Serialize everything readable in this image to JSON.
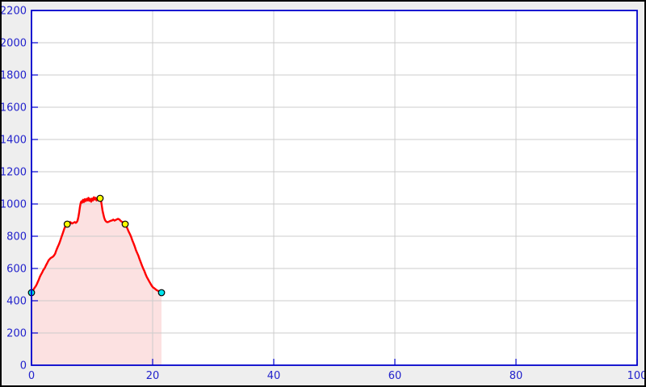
{
  "chart_data": {
    "type": "area",
    "description": "elevation-profile-track",
    "x_axis": {
      "min": 0,
      "max": 100,
      "tick_step": 20,
      "ticks": [
        0,
        20,
        40,
        60,
        80,
        100
      ]
    },
    "y_axis": {
      "min": 0,
      "max": 2200,
      "tick_step": 200,
      "ticks": [
        0,
        200,
        400,
        600,
        800,
        1000,
        1200,
        1400,
        1600,
        1800,
        2000,
        2200
      ]
    },
    "grid": true,
    "legend": false,
    "series": [
      {
        "name": "elevation",
        "points": [
          [
            0.0,
            450
          ],
          [
            0.15,
            458
          ],
          [
            0.3,
            468
          ],
          [
            0.45,
            477
          ],
          [
            0.6,
            485
          ],
          [
            0.75,
            493
          ],
          [
            0.9,
            505
          ],
          [
            1.05,
            518
          ],
          [
            1.2,
            530
          ],
          [
            1.35,
            545
          ],
          [
            1.5,
            558
          ],
          [
            1.65,
            568
          ],
          [
            1.8,
            578
          ],
          [
            1.95,
            590
          ],
          [
            2.1,
            598
          ],
          [
            2.25,
            608
          ],
          [
            2.4,
            620
          ],
          [
            2.55,
            630
          ],
          [
            2.7,
            642
          ],
          [
            2.85,
            652
          ],
          [
            3.0,
            658
          ],
          [
            3.15,
            664
          ],
          [
            3.3,
            668
          ],
          [
            3.5,
            672
          ],
          [
            3.7,
            680
          ],
          [
            3.9,
            692
          ],
          [
            4.05,
            708
          ],
          [
            4.2,
            722
          ],
          [
            4.35,
            735
          ],
          [
            4.5,
            748
          ],
          [
            4.65,
            762
          ],
          [
            4.8,
            778
          ],
          [
            4.95,
            795
          ],
          [
            5.1,
            812
          ],
          [
            5.25,
            828
          ],
          [
            5.4,
            845
          ],
          [
            5.55,
            858
          ],
          [
            5.75,
            868
          ],
          [
            5.95,
            874
          ],
          [
            6.1,
            880
          ],
          [
            6.25,
            885
          ],
          [
            6.4,
            888
          ],
          [
            6.55,
            883
          ],
          [
            6.7,
            879
          ],
          [
            6.85,
            882
          ],
          [
            7.0,
            885
          ],
          [
            7.15,
            888
          ],
          [
            7.3,
            883
          ],
          [
            7.45,
            887
          ],
          [
            7.6,
            896
          ],
          [
            7.75,
            920
          ],
          [
            7.88,
            950
          ],
          [
            8.0,
            982
          ],
          [
            8.1,
            1004
          ],
          [
            8.22,
            1016
          ],
          [
            8.35,
            1008
          ],
          [
            8.5,
            1026
          ],
          [
            8.65,
            1012
          ],
          [
            8.8,
            1030
          ],
          [
            8.95,
            1018
          ],
          [
            9.1,
            1032
          ],
          [
            9.25,
            1022
          ],
          [
            9.4,
            1038
          ],
          [
            9.55,
            1020
          ],
          [
            9.7,
            1032
          ],
          [
            9.85,
            1014
          ],
          [
            10.0,
            1034
          ],
          [
            10.15,
            1022
          ],
          [
            10.3,
            1042
          ],
          [
            10.45,
            1028
          ],
          [
            10.6,
            1038
          ],
          [
            10.75,
            1022
          ],
          [
            10.9,
            1032
          ],
          [
            11.05,
            1026
          ],
          [
            11.2,
            1032
          ],
          [
            11.33,
            1035
          ],
          [
            11.48,
            1020
          ],
          [
            11.6,
            992
          ],
          [
            11.73,
            958
          ],
          [
            11.87,
            936
          ],
          [
            12.0,
            915
          ],
          [
            12.15,
            900
          ],
          [
            12.3,
            892
          ],
          [
            12.5,
            887
          ],
          [
            12.7,
            889
          ],
          [
            12.9,
            893
          ],
          [
            13.1,
            896
          ],
          [
            13.3,
            898
          ],
          [
            13.5,
            903
          ],
          [
            13.7,
            897
          ],
          [
            13.9,
            901
          ],
          [
            14.1,
            905
          ],
          [
            14.3,
            908
          ],
          [
            14.5,
            904
          ],
          [
            14.7,
            896
          ],
          [
            14.9,
            890
          ],
          [
            15.1,
            887
          ],
          [
            15.3,
            881
          ],
          [
            15.47,
            875
          ],
          [
            15.65,
            863
          ],
          [
            15.85,
            846
          ],
          [
            16.05,
            828
          ],
          [
            16.25,
            813
          ],
          [
            16.45,
            796
          ],
          [
            16.65,
            774
          ],
          [
            16.85,
            756
          ],
          [
            17.05,
            736
          ],
          [
            17.25,
            713
          ],
          [
            17.45,
            696
          ],
          [
            17.65,
            679
          ],
          [
            17.85,
            657
          ],
          [
            18.05,
            637
          ],
          [
            18.25,
            617
          ],
          [
            18.45,
            599
          ],
          [
            18.65,
            583
          ],
          [
            18.85,
            563
          ],
          [
            19.05,
            546
          ],
          [
            19.25,
            533
          ],
          [
            19.45,
            519
          ],
          [
            19.65,
            506
          ],
          [
            19.85,
            493
          ],
          [
            20.05,
            483
          ],
          [
            20.25,
            478
          ],
          [
            20.45,
            472
          ],
          [
            20.65,
            466
          ],
          [
            20.85,
            462
          ],
          [
            21.05,
            460
          ],
          [
            21.2,
            456
          ],
          [
            21.35,
            452
          ],
          [
            21.47,
            450
          ]
        ]
      }
    ],
    "markers": {
      "waypoints": [
        {
          "x": 5.9,
          "elevation": 875
        },
        {
          "x": 11.33,
          "elevation": 1035
        },
        {
          "x": 15.47,
          "elevation": 875
        }
      ],
      "endpoints": [
        {
          "x": 0.0,
          "elevation": 450
        },
        {
          "x": 21.47,
          "elevation": 450
        }
      ]
    },
    "style": {
      "outer_background": "#EEEEEE",
      "plot_background": "#FFFFFF",
      "frame_color": "#000000",
      "axis_color": "#0000CC",
      "tick_label_color": "#2222CC",
      "grid_color": "#CCCCCC",
      "line_color": "#FF0000",
      "fill_color": "#FCE1E1",
      "waypoint_marker_color": "#FFFF00",
      "endpoint_marker_color": "#00E5EE",
      "marker_stroke_color": "#000000"
    }
  }
}
